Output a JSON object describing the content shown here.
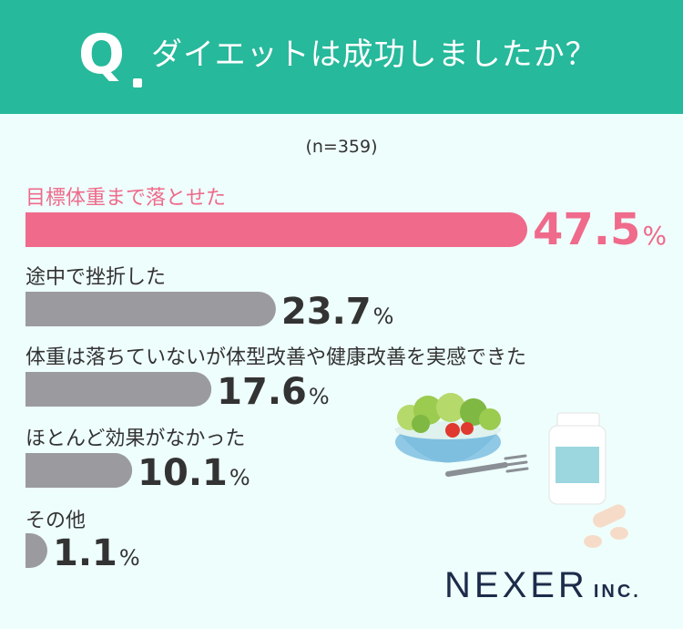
{
  "header": {
    "q_mark": "Q",
    "question": "ダイエットは成功しましたか？"
  },
  "sample_size": "(n=359)",
  "brand": {
    "main": "NEXER",
    "suffix": "INC."
  },
  "colors": {
    "header_bg": "#26b99b",
    "background": "#eefefc",
    "highlight": "#ef6a8b",
    "bar_gray": "#9b9b9f",
    "text_dark": "#333333"
  },
  "chart_data": {
    "type": "bar",
    "orientation": "horizontal",
    "categories": [
      "目標体重まで落とせた",
      "途中で挫折した",
      "体重は落ちていないが体型改善や健康改善を実感できた",
      "ほとんど効果がなかった",
      "その他"
    ],
    "values": [
      47.5,
      23.7,
      17.6,
      10.1,
      1.1
    ],
    "unit": "%",
    "highlight_index": 0,
    "title": "ダイエットは成功しましたか？",
    "xlabel": "",
    "ylabel": ""
  },
  "illustration": {
    "icons": [
      "salad-bowl-icon",
      "fork-icon",
      "supplement-bottle-icon",
      "pill-icon"
    ]
  }
}
